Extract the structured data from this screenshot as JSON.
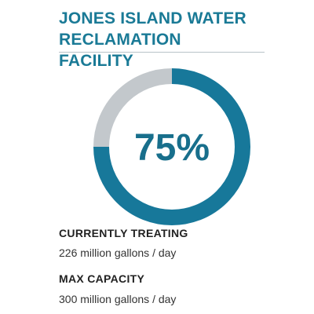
{
  "chart_data": {
    "type": "donut",
    "title": "JONES ISLAND WATER RECLAMATION FACILITY",
    "values": [
      75,
      25
    ],
    "value_labels": [
      "75%",
      null
    ],
    "colors": [
      "#17789a",
      "#c3c8cc"
    ],
    "stats": [
      {
        "label": "CURRENTLY TREATING",
        "value": "226 million gallons / day"
      },
      {
        "label": "MAX CAPACITY",
        "value": "300 million gallons / day"
      }
    ]
  }
}
